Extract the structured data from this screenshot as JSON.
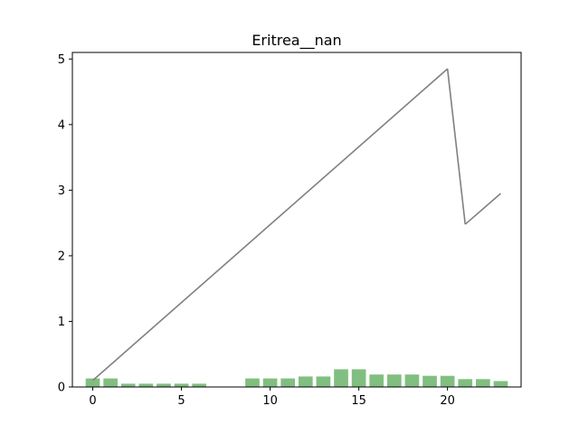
{
  "chart_data": {
    "type": "bar+line",
    "title": "Eritrea__nan",
    "xlabel": "",
    "ylabel": "",
    "xlim": [
      -1.15,
      24.15
    ],
    "ylim": [
      0,
      5.1
    ],
    "xticks": [
      0,
      5,
      10,
      15,
      20
    ],
    "yticks": [
      0,
      1,
      2,
      3,
      4,
      5
    ],
    "grid": false,
    "bars": {
      "name": "bars",
      "color": "#80bf80",
      "x": [
        0,
        1,
        2,
        3,
        4,
        5,
        6,
        7,
        8,
        9,
        10,
        11,
        12,
        13,
        14,
        15,
        16,
        17,
        18,
        19,
        20,
        21,
        22,
        23
      ],
      "values": [
        0.13,
        0.13,
        0.05,
        0.05,
        0.05,
        0.05,
        0.05,
        0,
        0,
        0.13,
        0.13,
        0.13,
        0.16,
        0.16,
        0.27,
        0.27,
        0.19,
        0.19,
        0.19,
        0.17,
        0.17,
        0.12,
        0.12,
        0.09
      ]
    },
    "line": {
      "name": "line",
      "color": "#808080",
      "segments": [
        {
          "x": [
            0,
            20
          ],
          "y": [
            0.1,
            4.85
          ]
        },
        {
          "x": [
            20,
            21
          ],
          "y": [
            4.85,
            2.48
          ]
        },
        {
          "x": [
            21,
            23
          ],
          "y": [
            2.48,
            2.95
          ]
        }
      ]
    }
  }
}
